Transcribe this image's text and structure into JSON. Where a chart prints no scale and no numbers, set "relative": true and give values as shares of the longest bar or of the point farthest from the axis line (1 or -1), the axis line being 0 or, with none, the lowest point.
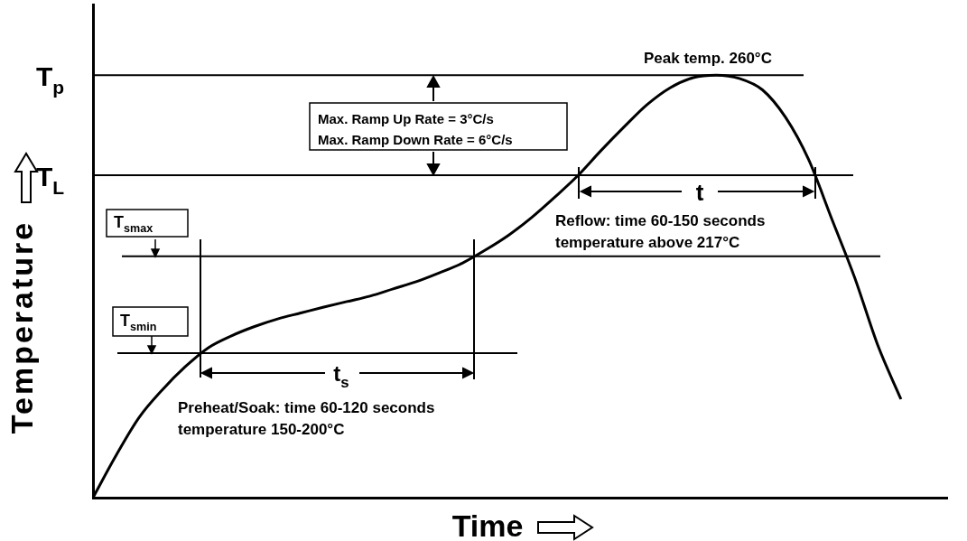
{
  "chart_data": {
    "type": "line",
    "relative": true,
    "xlabel": "Time",
    "ylabel": "Temperature",
    "categories": [
      null,
      null,
      null,
      null,
      null,
      null,
      null,
      null,
      null,
      null,
      null,
      null,
      null,
      null,
      null,
      null,
      null,
      null,
      null,
      null,
      null,
      null,
      null,
      null,
      null,
      null,
      null,
      null,
      null,
      null,
      null,
      null,
      null,
      null,
      null,
      null,
      null,
      null
    ],
    "series": [
      {
        "color": "#000000",
        "values": [
          0,
          0.1,
          0.19,
          0.255,
          0.31,
          0.355,
          0.383,
          0.405,
          0.423,
          0.437,
          0.451,
          0.464,
          0.477,
          0.494,
          0.511,
          0.532,
          0.555,
          0.586,
          0.621,
          0.663,
          0.711,
          0.762,
          0.821,
          0.877,
          0.93,
          0.97,
          0.994,
          1.0,
          0.992,
          0.965,
          0.9,
          0.8,
          0.66,
          0.52,
          0.36,
          0.233,
          null,
          null
        ]
      }
    ],
    "ref_lines": [
      {
        "axis": "y",
        "value": 1,
        "label": "T$_{p}$"
      },
      {
        "axis": "y",
        "value": 0.763,
        "label": "T$_{L}$"
      },
      {
        "axis": "y",
        "value": 0.571,
        "label": "T$_{smax}$"
      },
      {
        "axis": "y",
        "value": 0.342,
        "label": "T$_{smin}$"
      }
    ],
    "annotations": [
      "Peak temp. 260°C",
      "Max. Ramp Up Rate = 3°C/s",
      "Max. Ramp Down Rate = 6°C/s",
      "t",
      "Reflow: time 60-150 seconds",
      "temperature above 217°C",
      "t$_{s}$",
      "Preheat/Soak: time 60-120 seconds",
      "temperature 150-200°C"
    ],
    "grid": false,
    "legend": false,
    "marker": "none",
    "line_style": "solid"
  }
}
